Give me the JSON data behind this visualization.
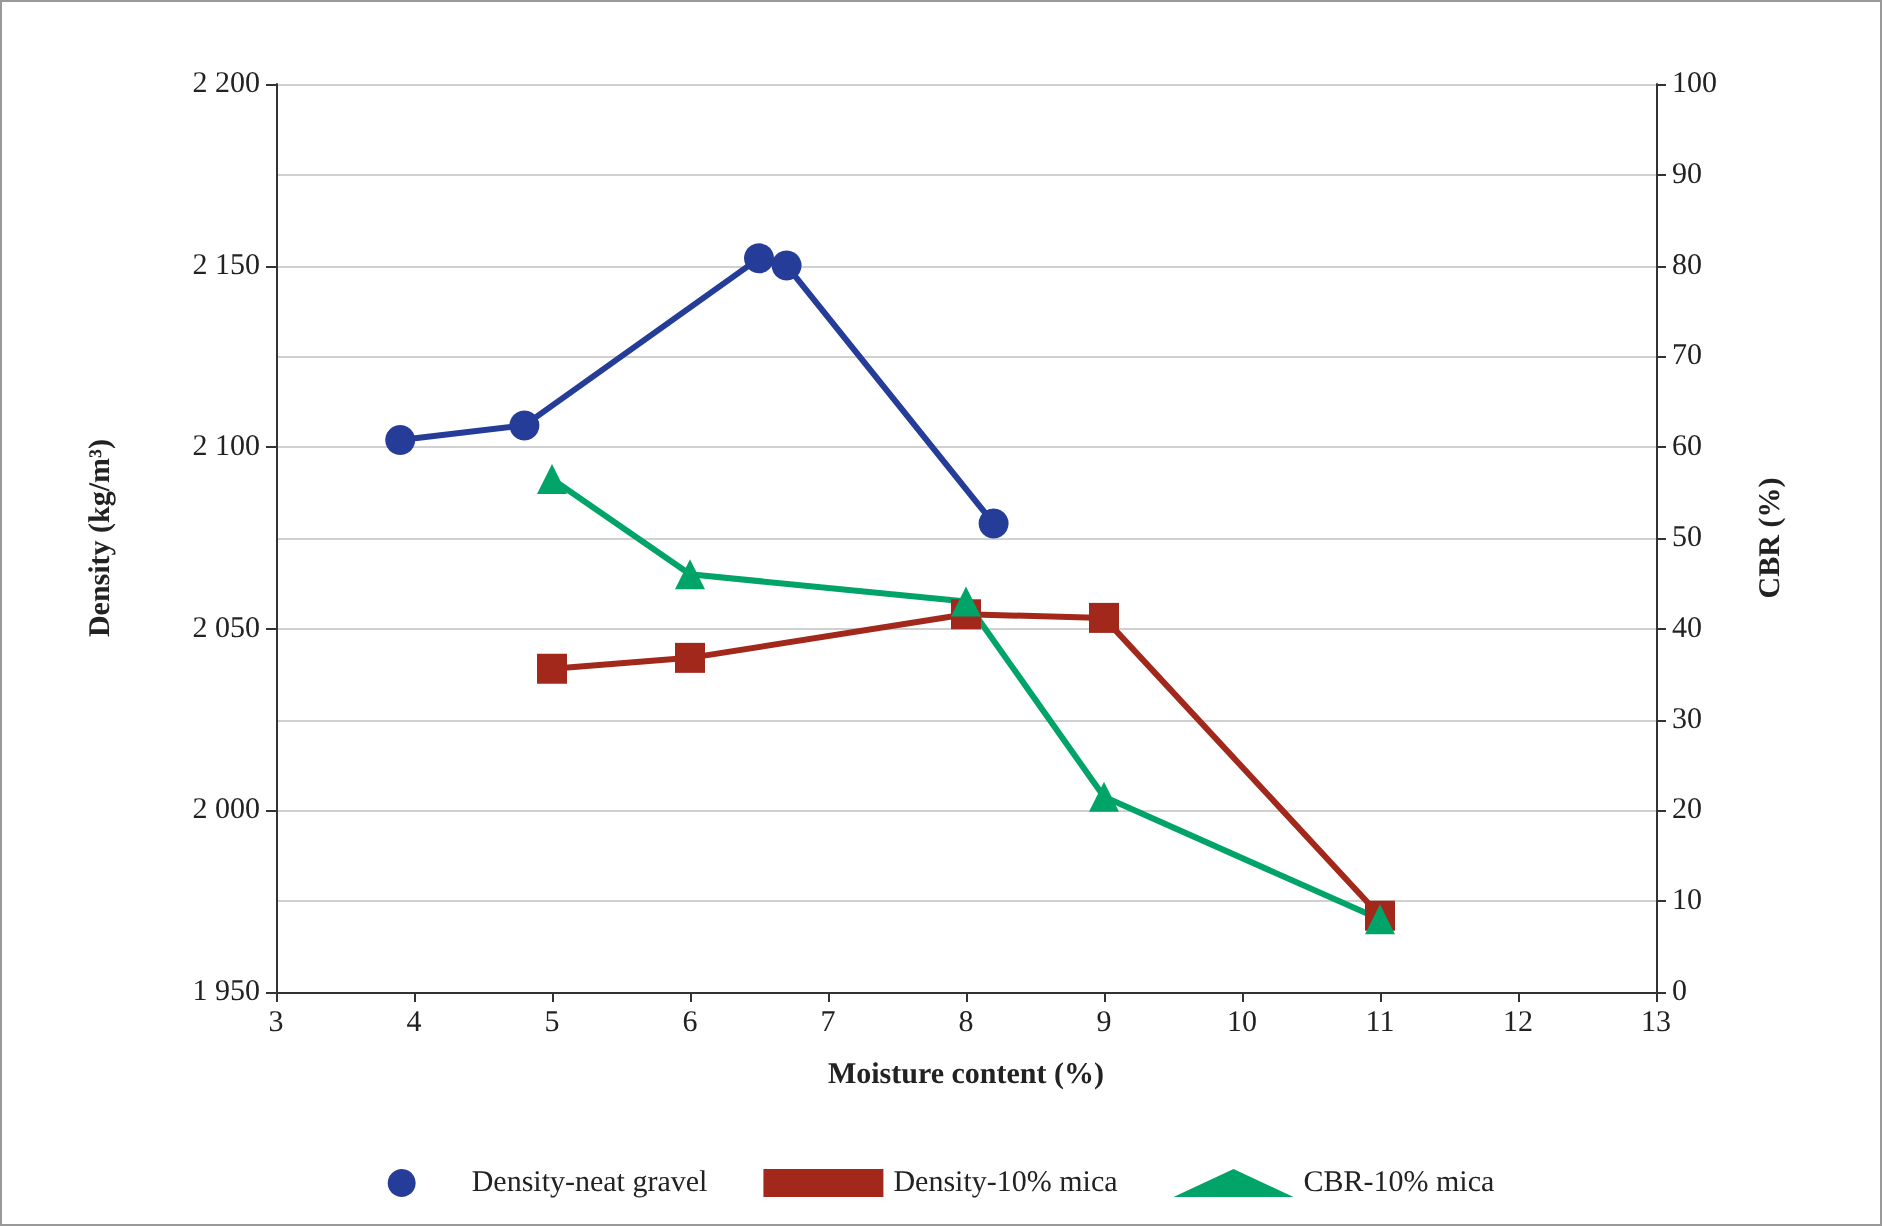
{
  "chart_data": {
    "type": "line",
    "xlabel": "Moisture content (%)",
    "ylabel": "Density (kg/m³)",
    "y2label": "CBR (%)",
    "series": [
      {
        "name": "Density-neat gravel",
        "color": "#253d98",
        "marker": "circle",
        "x": [
          3.9,
          4.8,
          6.5,
          6.7,
          8.2
        ],
        "values": [
          2102,
          2106,
          2152,
          2150,
          2079
        ]
      },
      {
        "name": "Density-10% mica",
        "color": "#a3281c",
        "marker": "square",
        "x": [
          5,
          6,
          8,
          9,
          11
        ],
        "values": [
          2039,
          2042,
          2054,
          2053,
          1971
        ]
      },
      {
        "name": "CBR-10% mica",
        "color": "#00a469",
        "marker": "triangle",
        "axis": "y2",
        "x": [
          5,
          6,
          8,
          9,
          11
        ],
        "values": [
          56.5,
          46,
          43,
          21.5,
          8
        ]
      }
    ],
    "xlim": [
      3,
      13
    ],
    "xticks": [
      3,
      4,
      5,
      6,
      7,
      8,
      9,
      10,
      11,
      12,
      13
    ],
    "ylim": [
      1950,
      2200
    ],
    "yticks": [
      {
        "value": 1950,
        "label": "1 950"
      },
      {
        "value": 2000,
        "label": "2 000"
      },
      {
        "value": 2050,
        "label": "2 050"
      },
      {
        "value": 2100,
        "label": "2 100"
      },
      {
        "value": 2150,
        "label": "2 150"
      },
      {
        "value": 2200,
        "label": "2 200"
      }
    ],
    "y2lim": [
      0,
      100
    ],
    "y2ticks": [
      0,
      10,
      20,
      30,
      40,
      50,
      60,
      70,
      80,
      90,
      100
    ],
    "grid": "y",
    "legend": "bottom",
    "line_style": "solid"
  }
}
